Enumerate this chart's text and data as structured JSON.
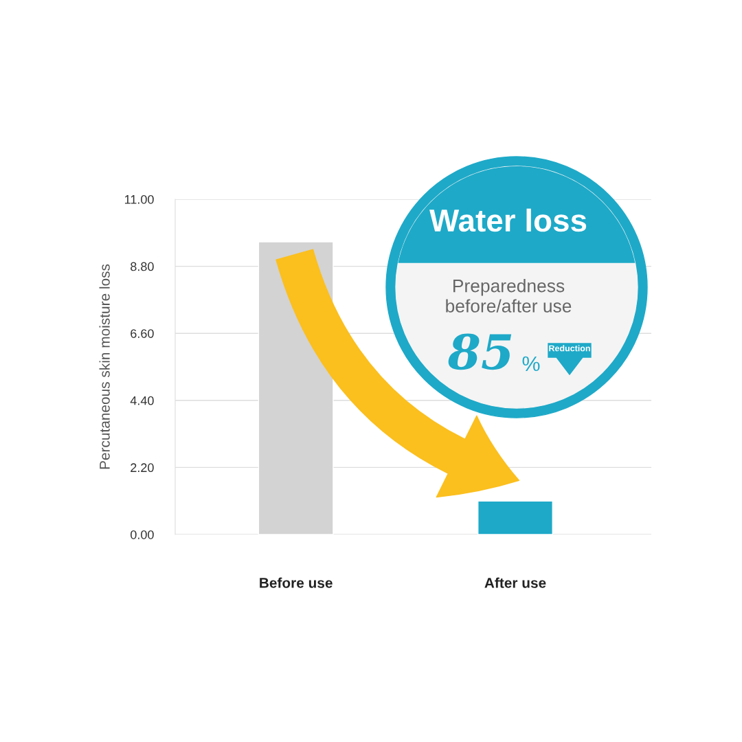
{
  "chart_data": {
    "type": "bar",
    "ylabel": "Percutaneous skin moisture loss",
    "categories": [
      "Before use",
      "After use"
    ],
    "values": [
      9.6,
      1.1
    ],
    "colors": [
      "#d3d3d3",
      "#1ea9c8"
    ],
    "ylim": [
      0,
      11
    ],
    "yticks": [
      {
        "value": 0,
        "label": "0.00"
      },
      {
        "value": 2.2,
        "label": "2.20"
      },
      {
        "value": 4.4,
        "label": "4.40"
      },
      {
        "value": 6.6,
        "label": "6.60"
      },
      {
        "value": 8.8,
        "label": "8.80"
      },
      {
        "value": 11,
        "label": "11.00"
      }
    ],
    "grid": "y",
    "annotations": [
      "Water loss",
      "Preparedness\nbefore/after use",
      "85",
      "%",
      "Reduction"
    ]
  }
}
